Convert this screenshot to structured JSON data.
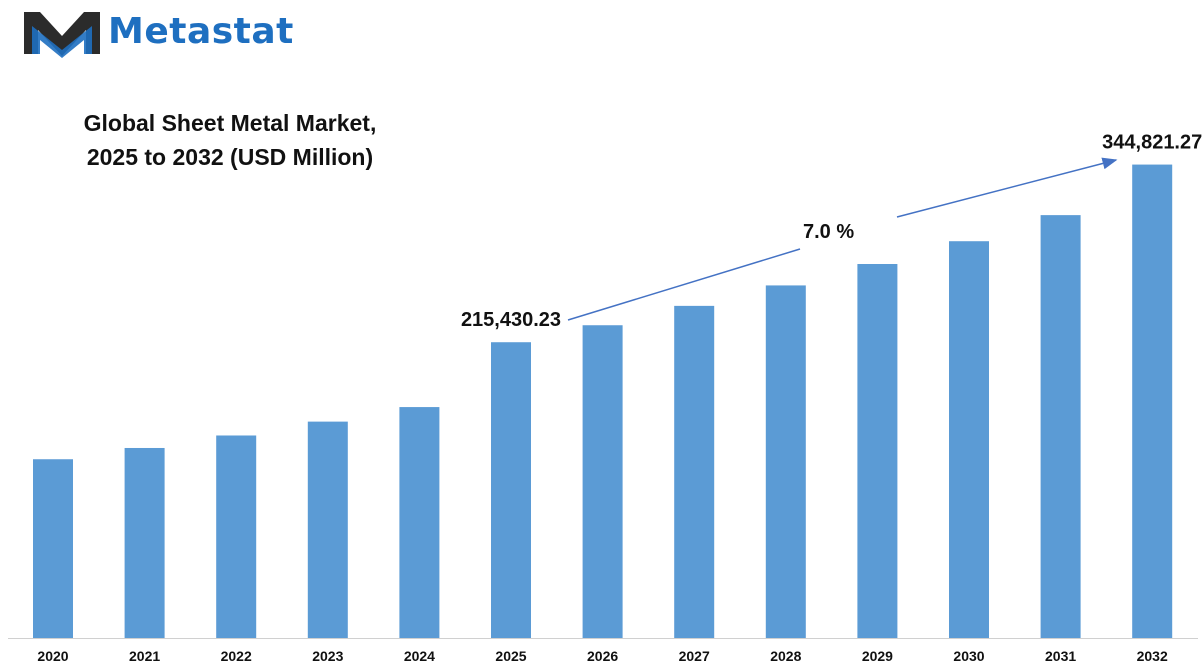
{
  "brand": {
    "name": "Metastat",
    "color": "#1e6fc0",
    "icon": "metastat-m-logo-icon"
  },
  "chart_data": {
    "type": "bar",
    "title_lines": [
      "Global Sheet Metal Market,",
      "2025 to 2032 (USD Million)"
    ],
    "categories": [
      "2020",
      "2021",
      "2022",
      "2023",
      "2024",
      "2025",
      "2026",
      "2027",
      "2028",
      "2029",
      "2030",
      "2031",
      "2032"
    ],
    "values": [
      130200,
      138400,
      147500,
      157600,
      168200,
      215430.23,
      227800,
      241900,
      256800,
      272400,
      289000,
      308000,
      344821.27
    ],
    "bar_color": "#5b9bd5",
    "ylim": [
      0,
      370000
    ],
    "grid": false,
    "data_labels": [
      {
        "category": "2025",
        "text": "215,430.23"
      },
      {
        "category": "2032",
        "text": "344,821.27"
      }
    ],
    "cagr_label": "7.0 %"
  }
}
